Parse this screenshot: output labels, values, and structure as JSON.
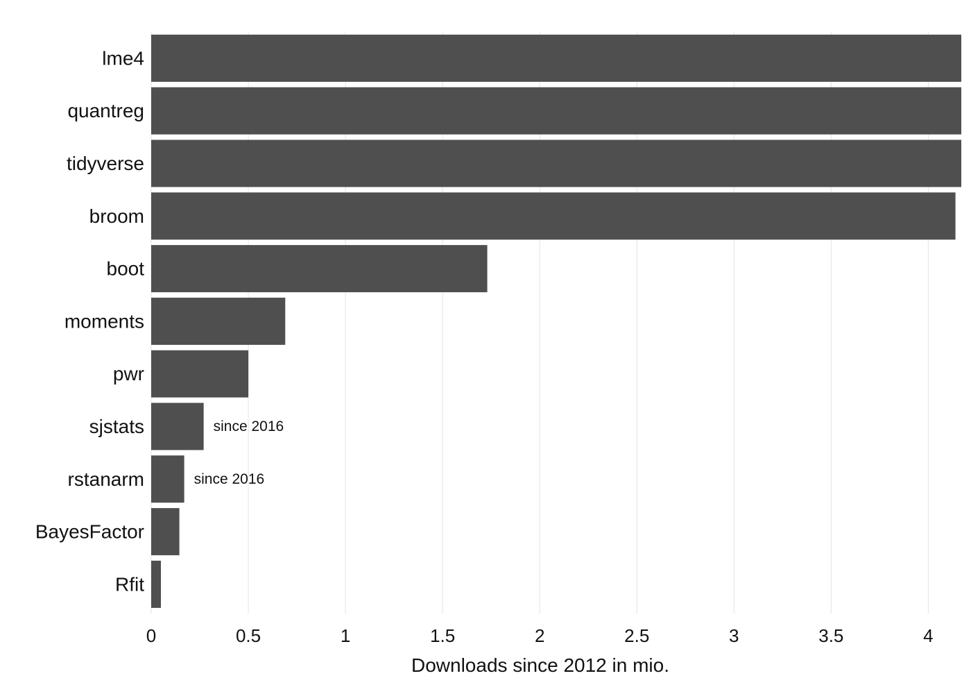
{
  "chart_data": {
    "type": "bar",
    "orientation": "horizontal",
    "title": "",
    "xlabel": "Downloads since 2012 in mio.",
    "ylabel": "",
    "categories": [
      "lme4",
      "quantreg",
      "tidyverse",
      "broom",
      "boot",
      "moments",
      "pwr",
      "sjstats",
      "rstanarm",
      "BayesFactor",
      "Rfit"
    ],
    "values": [
      4.17,
      4.17,
      4.17,
      4.14,
      1.73,
      0.69,
      0.5,
      0.27,
      0.17,
      0.145,
      0.05
    ],
    "annotations": [
      "",
      "",
      "",
      "",
      "",
      "",
      "",
      "since 2016",
      "since 2016",
      "",
      ""
    ],
    "xlim": [
      0,
      4.17
    ],
    "xticks": [
      0,
      0.5,
      1,
      1.5,
      2,
      2.5,
      3,
      3.5,
      4
    ],
    "xtick_labels": [
      "0",
      "0.5",
      "1",
      "1.5",
      "2",
      "2.5",
      "3",
      "3.5",
      "4"
    ],
    "grid": "vertical major",
    "legend": "none",
    "colors": {
      "bar": "#4f4f4f",
      "grid": "#e3e3e3",
      "text": "#111111",
      "background": "#ffffff"
    }
  }
}
